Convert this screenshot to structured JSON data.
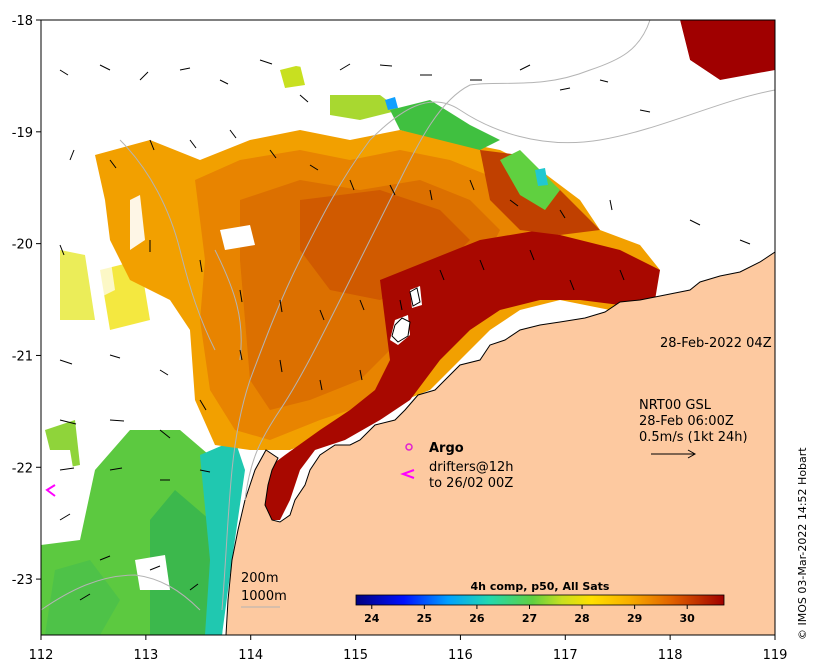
{
  "map": {
    "timestamp": "28-Feb-2022 04Z",
    "currents_note": {
      "line1": "NRT00 GSL",
      "line2": "28-Feb 06:00Z",
      "line3": "0.5m/s (1kt 24h)"
    },
    "legend": {
      "argo_label": "Argo",
      "drifters_label": "drifters@12h",
      "drifters_label2": "to 26/02 00Z"
    },
    "isobaths": {
      "line1": "200m",
      "line2": "1000m"
    },
    "credit": "© IMOS 03-Mar-2022 14:52 Hobart",
    "colors": {
      "land": "#fdc9a0",
      "argo": "#e020d0",
      "drifter": "#ff00ff"
    }
  },
  "chart_data": {
    "type": "heatmap",
    "title": "4h comp, p50, All Sats",
    "x_ticks": [
      "112",
      "113",
      "114",
      "115",
      "116",
      "117",
      "118",
      "119"
    ],
    "y_ticks": [
      "-18",
      "-19",
      "-20",
      "-21",
      "-22",
      "-23"
    ],
    "xlim": [
      112,
      119
    ],
    "ylim": [
      -23.5,
      -18
    ],
    "colorbar": {
      "ticks": [
        "24",
        "25",
        "26",
        "27",
        "28",
        "29",
        "30"
      ],
      "range": [
        23.7,
        30.7
      ]
    }
  }
}
